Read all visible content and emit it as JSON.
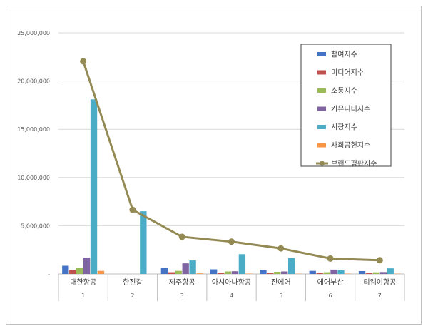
{
  "chart_data": {
    "type": "bar",
    "categories": [
      "대한항공",
      "한진칼",
      "제주항공",
      "아시아나항공",
      "진에어",
      "에어부산",
      "티웨이항공"
    ],
    "category_numbers": [
      "1",
      "2",
      "3",
      "4",
      "5",
      "6",
      "7"
    ],
    "ylim": [
      0,
      25000000
    ],
    "yticks": [
      0,
      5000000,
      10000000,
      15000000,
      20000000,
      25000000
    ],
    "ytick_labels": [
      "-",
      "5,000,000",
      "10,000,000",
      "15,000,000",
      "20,000,000",
      "25,000,000"
    ],
    "grid": true,
    "legend_position": "top-right",
    "series": [
      {
        "name": "참여지수",
        "kind": "bar",
        "color": "#4472c4",
        "values": [
          850000,
          0,
          600000,
          480000,
          430000,
          320000,
          300000
        ]
      },
      {
        "name": "미디어지수",
        "kind": "bar",
        "color": "#c0504d",
        "values": [
          420000,
          0,
          180000,
          120000,
          140000,
          120000,
          110000
        ]
      },
      {
        "name": "소통지수",
        "kind": "bar",
        "color": "#9bbb59",
        "values": [
          600000,
          0,
          320000,
          260000,
          220000,
          180000,
          170000
        ]
      },
      {
        "name": "커뮤니티지수",
        "kind": "bar",
        "color": "#8064a2",
        "values": [
          1700000,
          0,
          1100000,
          280000,
          260000,
          450000,
          200000
        ]
      },
      {
        "name": "시장지수",
        "kind": "bar",
        "color": "#4bacc6",
        "values": [
          18100000,
          6500000,
          1400000,
          2050000,
          1650000,
          380000,
          580000
        ]
      },
      {
        "name": "사회공헌지수",
        "kind": "bar",
        "color": "#f79646",
        "values": [
          320000,
          0,
          60000,
          40000,
          30000,
          40000,
          30000
        ]
      },
      {
        "name": "브랜드평판지수",
        "kind": "line",
        "color": "#948a54",
        "values": [
          22050000,
          6650000,
          3850000,
          3350000,
          2650000,
          1600000,
          1420000
        ]
      }
    ]
  }
}
